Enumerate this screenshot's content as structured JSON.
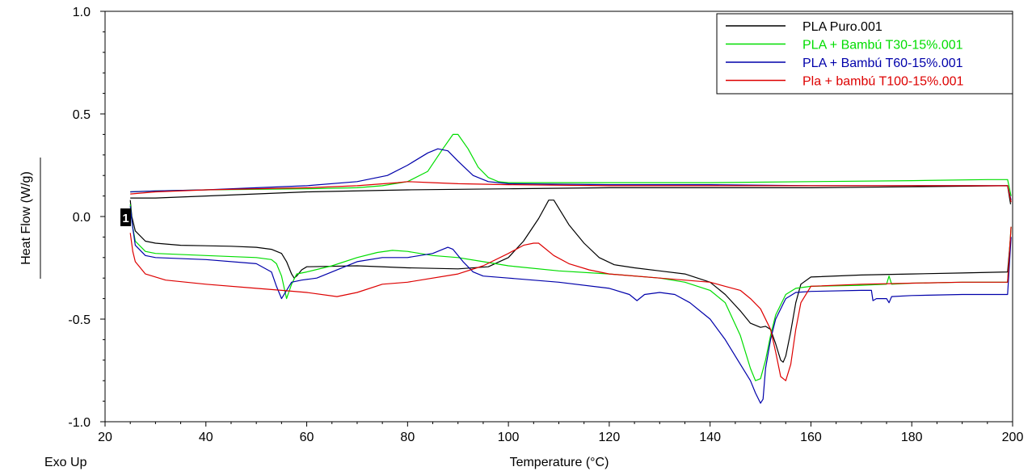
{
  "chart_data": {
    "type": "line",
    "xlabel": "Temperature (°C)",
    "ylabel": "Heat Flow (W/g)",
    "corner_label": "Exo Up",
    "marker_label": "1",
    "xlim": [
      20,
      200
    ],
    "ylim": [
      -1.0,
      1.0
    ],
    "x_ticks": [
      20,
      40,
      60,
      80,
      100,
      120,
      140,
      160,
      180,
      200
    ],
    "x_tick_labels": [
      "20",
      "40",
      "60",
      "80",
      "100",
      "120",
      "140",
      "160",
      "180",
      "200"
    ],
    "y_ticks": [
      -1.0,
      -0.5,
      0.0,
      0.5,
      1.0
    ],
    "y_tick_labels": [
      "-1.0",
      "-0.5",
      "0.0",
      "0.5",
      "1.0"
    ],
    "grid": false,
    "legend_position": "top-right",
    "series": [
      {
        "name": "PLA Puro.001",
        "color": "#000000",
        "segments": [
          [
            [
              25,
              0.08
            ],
            [
              25.3,
              0.0
            ],
            [
              26,
              -0.07
            ],
            [
              28,
              -0.12
            ],
            [
              30,
              -0.13
            ],
            [
              35,
              -0.14
            ],
            [
              45,
              -0.145
            ],
            [
              50,
              -0.15
            ],
            [
              53,
              -0.16
            ],
            [
              55,
              -0.18
            ],
            [
              56,
              -0.22
            ],
            [
              57,
              -0.28
            ],
            [
              57.5,
              -0.3
            ],
            [
              58,
              -0.29
            ],
            [
              59,
              -0.26
            ],
            [
              60,
              -0.245
            ],
            [
              70,
              -0.24
            ],
            [
              80,
              -0.25
            ],
            [
              90,
              -0.255
            ],
            [
              96,
              -0.245
            ],
            [
              100,
              -0.2
            ],
            [
              103,
              -0.12
            ],
            [
              106,
              -0.01
            ],
            [
              108,
              0.08
            ],
            [
              109,
              0.08
            ],
            [
              110,
              0.04
            ],
            [
              112,
              -0.04
            ],
            [
              115,
              -0.13
            ],
            [
              118,
              -0.2
            ],
            [
              121,
              -0.235
            ],
            [
              125,
              -0.25
            ],
            [
              130,
              -0.265
            ],
            [
              135,
              -0.28
            ],
            [
              140,
              -0.32
            ],
            [
              143,
              -0.38
            ],
            [
              146,
              -0.46
            ],
            [
              148,
              -0.52
            ],
            [
              150,
              -0.54
            ],
            [
              151,
              -0.535
            ],
            [
              152,
              -0.55
            ],
            [
              153,
              -0.62
            ],
            [
              154,
              -0.7
            ],
            [
              154.5,
              -0.71
            ],
            [
              155,
              -0.68
            ],
            [
              156,
              -0.56
            ],
            [
              157,
              -0.42
            ],
            [
              158,
              -0.33
            ],
            [
              160,
              -0.295
            ],
            [
              170,
              -0.285
            ],
            [
              180,
              -0.28
            ],
            [
              190,
              -0.275
            ],
            [
              199,
              -0.27
            ],
            [
              199.6,
              -0.1
            ]
          ],
          [
            [
              25,
              0.09
            ],
            [
              30,
              0.09
            ],
            [
              40,
              0.1
            ],
            [
              60,
              0.12
            ],
            [
              80,
              0.13
            ],
            [
              100,
              0.135
            ],
            [
              120,
              0.14
            ],
            [
              140,
              0.14
            ],
            [
              160,
              0.14
            ],
            [
              180,
              0.145
            ],
            [
              199,
              0.15
            ],
            [
              199.6,
              0.06
            ]
          ]
        ]
      },
      {
        "name": "PLA + Bambú T30-15%.001",
        "color": "#00dd00",
        "segments": [
          [
            [
              25,
              0.06
            ],
            [
              25.4,
              -0.04
            ],
            [
              26,
              -0.12
            ],
            [
              28,
              -0.17
            ],
            [
              30,
              -0.18
            ],
            [
              40,
              -0.19
            ],
            [
              50,
              -0.2
            ],
            [
              53,
              -0.21
            ],
            [
              54,
              -0.23
            ],
            [
              55,
              -0.29
            ],
            [
              56,
              -0.4
            ],
            [
              57,
              -0.33
            ],
            [
              58,
              -0.28
            ],
            [
              60,
              -0.27
            ],
            [
              65,
              -0.24
            ],
            [
              70,
              -0.2
            ],
            [
              74,
              -0.175
            ],
            [
              77,
              -0.165
            ],
            [
              80,
              -0.17
            ],
            [
              85,
              -0.19
            ],
            [
              90,
              -0.2
            ],
            [
              95,
              -0.22
            ],
            [
              100,
              -0.24
            ],
            [
              110,
              -0.265
            ],
            [
              120,
              -0.28
            ],
            [
              130,
              -0.3
            ],
            [
              135,
              -0.32
            ],
            [
              140,
              -0.36
            ],
            [
              143,
              -0.42
            ],
            [
              146,
              -0.58
            ],
            [
              148,
              -0.74
            ],
            [
              149,
              -0.8
            ],
            [
              150,
              -0.79
            ],
            [
              151,
              -0.7
            ],
            [
              152,
              -0.58
            ],
            [
              153,
              -0.48
            ],
            [
              155,
              -0.38
            ],
            [
              157,
              -0.35
            ],
            [
              160,
              -0.34
            ],
            [
              170,
              -0.335
            ],
            [
              175,
              -0.33
            ],
            [
              175.5,
              -0.29
            ],
            [
              176,
              -0.33
            ],
            [
              180,
              -0.325
            ],
            [
              190,
              -0.32
            ],
            [
              199,
              -0.32
            ],
            [
              199.7,
              -0.05
            ]
          ],
          [
            [
              25,
              0.12
            ],
            [
              30,
              0.125
            ],
            [
              40,
              0.13
            ],
            [
              60,
              0.135
            ],
            [
              70,
              0.14
            ],
            [
              75,
              0.15
            ],
            [
              80,
              0.17
            ],
            [
              84,
              0.22
            ],
            [
              87,
              0.33
            ],
            [
              89,
              0.4
            ],
            [
              90,
              0.4
            ],
            [
              92,
              0.33
            ],
            [
              94,
              0.24
            ],
            [
              96,
              0.19
            ],
            [
              98,
              0.17
            ],
            [
              100,
              0.165
            ],
            [
              120,
              0.165
            ],
            [
              140,
              0.165
            ],
            [
              160,
              0.17
            ],
            [
              180,
              0.175
            ],
            [
              195,
              0.18
            ],
            [
              199,
              0.18
            ],
            [
              199.7,
              0.1
            ]
          ]
        ]
      },
      {
        "name": "PLA + Bambú T60-15%.001",
        "color": "#0000aa",
        "segments": [
          [
            [
              25,
              0.05
            ],
            [
              25.4,
              -0.04
            ],
            [
              26,
              -0.14
            ],
            [
              28,
              -0.19
            ],
            [
              30,
              -0.2
            ],
            [
              40,
              -0.21
            ],
            [
              50,
              -0.23
            ],
            [
              53,
              -0.27
            ],
            [
              54,
              -0.34
            ],
            [
              55,
              -0.4
            ],
            [
              56,
              -0.36
            ],
            [
              57,
              -0.32
            ],
            [
              59,
              -0.31
            ],
            [
              62,
              -0.3
            ],
            [
              65,
              -0.27
            ],
            [
              70,
              -0.22
            ],
            [
              75,
              -0.2
            ],
            [
              80,
              -0.2
            ],
            [
              85,
              -0.18
            ],
            [
              87,
              -0.16
            ],
            [
              88,
              -0.15
            ],
            [
              89,
              -0.16
            ],
            [
              91,
              -0.22
            ],
            [
              93,
              -0.27
            ],
            [
              95,
              -0.29
            ],
            [
              100,
              -0.3
            ],
            [
              110,
              -0.32
            ],
            [
              120,
              -0.35
            ],
            [
              124,
              -0.38
            ],
            [
              125.5,
              -0.41
            ],
            [
              127,
              -0.38
            ],
            [
              130,
              -0.37
            ],
            [
              133,
              -0.38
            ],
            [
              136,
              -0.42
            ],
            [
              140,
              -0.5
            ],
            [
              143,
              -0.6
            ],
            [
              146,
              -0.72
            ],
            [
              148,
              -0.8
            ],
            [
              149,
              -0.86
            ],
            [
              150,
              -0.91
            ],
            [
              150.5,
              -0.89
            ],
            [
              151,
              -0.74
            ],
            [
              152,
              -0.6
            ],
            [
              153,
              -0.5
            ],
            [
              155,
              -0.4
            ],
            [
              157,
              -0.37
            ],
            [
              160,
              -0.365
            ],
            [
              170,
              -0.36
            ],
            [
              172,
              -0.36
            ],
            [
              172.3,
              -0.41
            ],
            [
              173,
              -0.4
            ],
            [
              175,
              -0.4
            ],
            [
              175.5,
              -0.42
            ],
            [
              176,
              -0.39
            ],
            [
              180,
              -0.385
            ],
            [
              190,
              -0.38
            ],
            [
              199,
              -0.38
            ],
            [
              199.7,
              -0.1
            ]
          ],
          [
            [
              25,
              0.12
            ],
            [
              30,
              0.125
            ],
            [
              40,
              0.13
            ],
            [
              50,
              0.14
            ],
            [
              60,
              0.15
            ],
            [
              70,
              0.17
            ],
            [
              76,
              0.2
            ],
            [
              80,
              0.25
            ],
            [
              84,
              0.31
            ],
            [
              86,
              0.33
            ],
            [
              88,
              0.32
            ],
            [
              90,
              0.27
            ],
            [
              93,
              0.2
            ],
            [
              96,
              0.17
            ],
            [
              100,
              0.16
            ],
            [
              120,
              0.155
            ],
            [
              140,
              0.155
            ],
            [
              160,
              0.15
            ],
            [
              180,
              0.15
            ],
            [
              199,
              0.15
            ],
            [
              199.7,
              0.08
            ]
          ]
        ]
      },
      {
        "name": "Pla + bambú T100-15%.001",
        "color": "#dd0000",
        "segments": [
          [
            [
              25,
              -0.08
            ],
            [
              25.5,
              -0.17
            ],
            [
              26,
              -0.22
            ],
            [
              28,
              -0.28
            ],
            [
              32,
              -0.31
            ],
            [
              40,
              -0.33
            ],
            [
              50,
              -0.35
            ],
            [
              55,
              -0.36
            ],
            [
              60,
              -0.37
            ],
            [
              66,
              -0.39
            ],
            [
              70,
              -0.37
            ],
            [
              75,
              -0.33
            ],
            [
              80,
              -0.32
            ],
            [
              90,
              -0.28
            ],
            [
              95,
              -0.24
            ],
            [
              100,
              -0.18
            ],
            [
              103,
              -0.14
            ],
            [
              105,
              -0.13
            ],
            [
              106,
              -0.13
            ],
            [
              107,
              -0.15
            ],
            [
              109,
              -0.19
            ],
            [
              112,
              -0.23
            ],
            [
              116,
              -0.26
            ],
            [
              120,
              -0.28
            ],
            [
              130,
              -0.3
            ],
            [
              140,
              -0.32
            ],
            [
              143,
              -0.34
            ],
            [
              146,
              -0.36
            ],
            [
              148,
              -0.4
            ],
            [
              150,
              -0.45
            ],
            [
              152,
              -0.55
            ],
            [
              153,
              -0.66
            ],
            [
              154,
              -0.78
            ],
            [
              155,
              -0.8
            ],
            [
              156,
              -0.72
            ],
            [
              157,
              -0.55
            ],
            [
              158,
              -0.42
            ],
            [
              160,
              -0.34
            ],
            [
              170,
              -0.33
            ],
            [
              180,
              -0.325
            ],
            [
              190,
              -0.32
            ],
            [
              199,
              -0.32
            ],
            [
              199.7,
              -0.05
            ]
          ],
          [
            [
              25,
              0.11
            ],
            [
              30,
              0.12
            ],
            [
              40,
              0.13
            ],
            [
              60,
              0.14
            ],
            [
              70,
              0.15
            ],
            [
              78,
              0.165
            ],
            [
              80,
              0.17
            ],
            [
              85,
              0.165
            ],
            [
              90,
              0.16
            ],
            [
              100,
              0.155
            ],
            [
              120,
              0.15
            ],
            [
              140,
              0.15
            ],
            [
              160,
              0.15
            ],
            [
              180,
              0.15
            ],
            [
              199,
              0.15
            ],
            [
              199.7,
              0.07
            ]
          ]
        ]
      }
    ]
  }
}
